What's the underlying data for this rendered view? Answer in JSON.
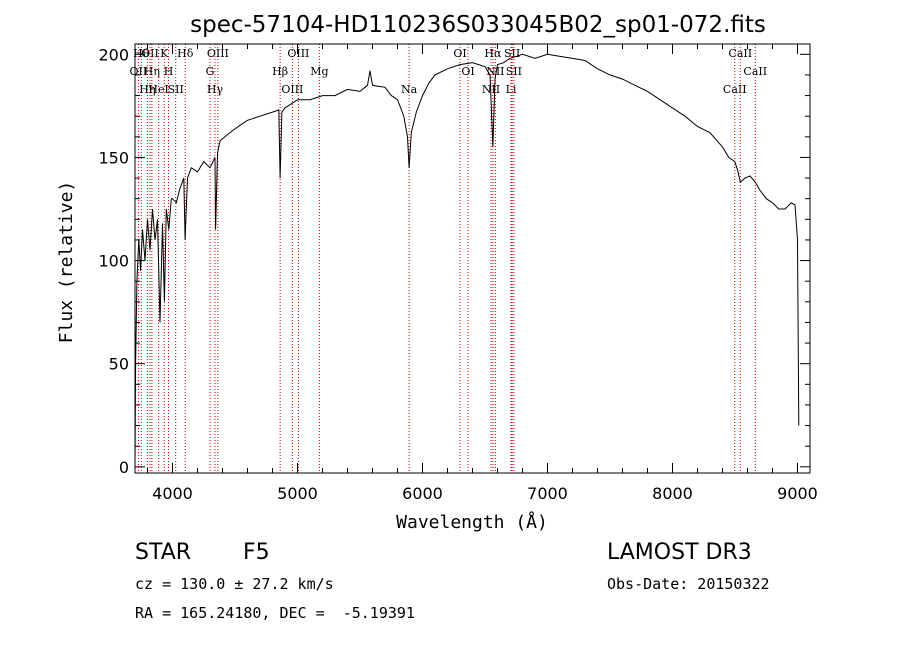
{
  "chart_data": {
    "type": "line",
    "title": "spec-57104-HD110236S033045B02_sp01-072.fits",
    "xlabel": "Wavelength (Å)",
    "ylabel": "Flux (relative)",
    "xlim": [
      3700,
      9100
    ],
    "ylim": [
      -3,
      205
    ],
    "xticks": [
      4000,
      5000,
      6000,
      7000,
      8000,
      9000
    ],
    "yticks": [
      0,
      50,
      100,
      150,
      200
    ],
    "grid": false,
    "line_color": "#000000",
    "marker_color": "#cc0000",
    "series": [
      {
        "x": [
          3700,
          3705,
          3715,
          3730,
          3745,
          3760,
          3780,
          3800,
          3820,
          3840,
          3860,
          3880,
          3900,
          3920,
          3935,
          3950,
          3970,
          3990,
          4000,
          4030,
          4060,
          4090,
          4101,
          4120,
          4150,
          4200,
          4250,
          4300,
          4340,
          4345,
          4360,
          4380,
          4420,
          4480,
          4550,
          4600,
          4700,
          4800,
          4850,
          4861,
          4875,
          4900,
          4950,
          5000,
          5100,
          5200,
          5300,
          5400,
          5500,
          5560,
          5580,
          5600,
          5700,
          5750,
          5800,
          5850,
          5880,
          5893,
          5910,
          5950,
          6000,
          6050,
          6100,
          6200,
          6300,
          6400,
          6500,
          6540,
          6563,
          6580,
          6600,
          6650,
          6700,
          6800,
          6900,
          7000,
          7100,
          7200,
          7300,
          7400,
          7500,
          7600,
          7700,
          7800,
          7900,
          8000,
          8100,
          8200,
          8300,
          8400,
          8450,
          8498,
          8520,
          8542,
          8580,
          8620,
          8662,
          8700,
          8750,
          8800,
          8850,
          8900,
          8950,
          8980,
          9000,
          9010
        ],
        "y": [
          0,
          50,
          90,
          110,
          95,
          115,
          100,
          120,
          105,
          125,
          110,
          120,
          70,
          118,
          80,
          125,
          115,
          130,
          130,
          128,
          135,
          140,
          110,
          140,
          145,
          143,
          148,
          145,
          150,
          115,
          152,
          158,
          160,
          163,
          166,
          168,
          170,
          172,
          173,
          140,
          172,
          174,
          176,
          178,
          178,
          180,
          180,
          183,
          182,
          185,
          192,
          185,
          184,
          180,
          178,
          170,
          160,
          145,
          162,
          172,
          180,
          186,
          190,
          193,
          195,
          196,
          194,
          190,
          155,
          188,
          195,
          196,
          198,
          200,
          198,
          200,
          199,
          198,
          197,
          193,
          190,
          188,
          185,
          182,
          178,
          174,
          170,
          165,
          162,
          155,
          150,
          148,
          144,
          138,
          140,
          141,
          138,
          134,
          130,
          128,
          125,
          125,
          128,
          127,
          110,
          20
        ]
      }
    ],
    "markers": [
      {
        "x": 3750,
        "label": "Hθ"
      },
      {
        "x": 3727,
        "label": "OII"
      },
      {
        "x": 3799,
        "label": "Hη"
      },
      {
        "x": 3820,
        "label": "OII"
      },
      {
        "x": 3835,
        "label": "Hη"
      },
      {
        "x": 3889,
        "label": "HeI"
      },
      {
        "x": 3934,
        "label": "K"
      },
      {
        "x": 3968,
        "label": "H"
      },
      {
        "x": 4026,
        "label": "SII"
      },
      {
        "x": 4102,
        "label": "Hδ"
      },
      {
        "x": 4300,
        "label": "G"
      },
      {
        "x": 4340,
        "label": "Hγ"
      },
      {
        "x": 4363,
        "label": "OIII"
      },
      {
        "x": 4861,
        "label": "Hβ"
      },
      {
        "x": 4959,
        "label": "OIII"
      },
      {
        "x": 5007,
        "label": "OIII"
      },
      {
        "x": 5175,
        "label": "Mg"
      },
      {
        "x": 5893,
        "label": "Na"
      },
      {
        "x": 6300,
        "label": "OI"
      },
      {
        "x": 6364,
        "label": "OI"
      },
      {
        "x": 6548,
        "label": "NII"
      },
      {
        "x": 6563,
        "label": "Hα"
      },
      {
        "x": 6583,
        "label": "NII"
      },
      {
        "x": 6708,
        "label": "Li"
      },
      {
        "x": 6717,
        "label": "SII"
      },
      {
        "x": 6731,
        "label": "SII"
      },
      {
        "x": 8498,
        "label": "CaII"
      },
      {
        "x": 8542,
        "label": "CaII"
      },
      {
        "x": 8662,
        "label": "CaII"
      }
    ]
  },
  "info": {
    "object_type": "STAR",
    "subclass": "F5",
    "survey": "LAMOST DR3",
    "cz": "cz = 130.0 ± 27.2 km/s",
    "obs_date": "Obs-Date: 20150322",
    "coords": "RA = 165.24180, DEC =  -5.19391"
  }
}
